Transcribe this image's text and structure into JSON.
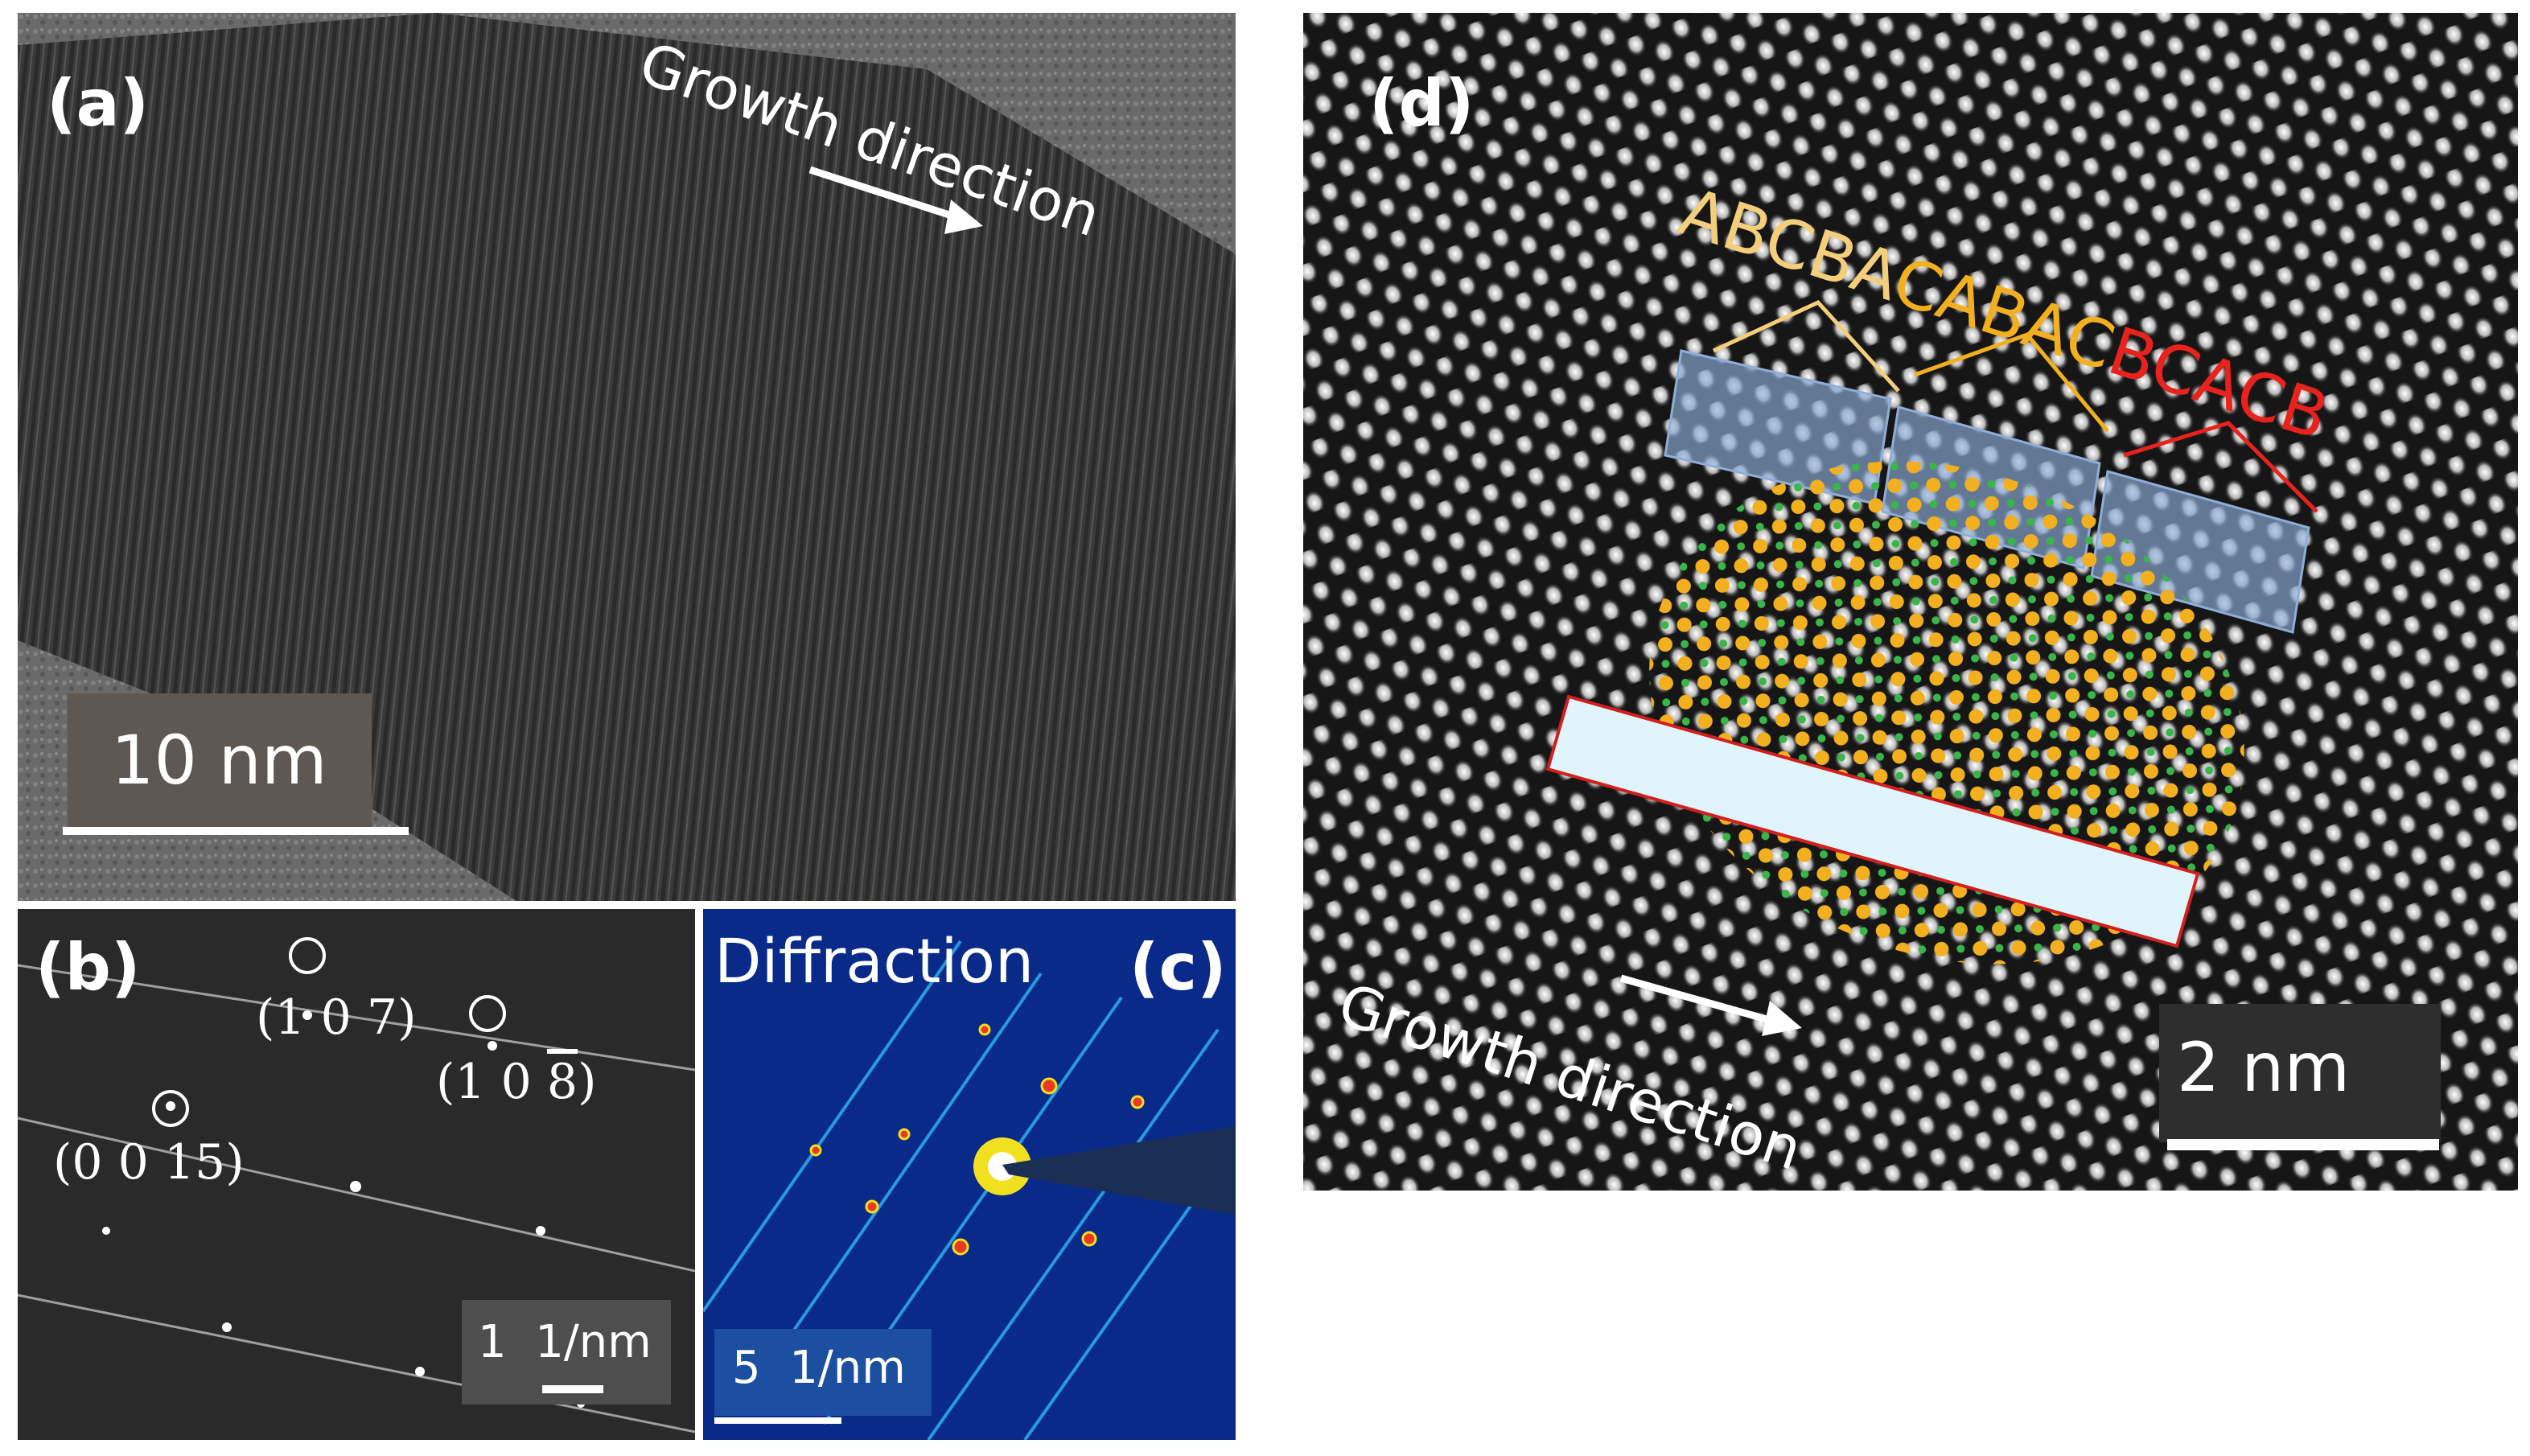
{
  "panels": {
    "a": {
      "label": "(a)",
      "annotation": "Growth direction",
      "scale_bar": "10 nm"
    },
    "b": {
      "label": "(b)",
      "spots": {
        "s107": "(1 0 7)",
        "s108_pre": "(1 0 ",
        "s108_bar": "8",
        "s108_post": ")",
        "s0015": "(0 0 15)"
      },
      "scale_bar": "1  1/nm"
    },
    "c": {
      "label": "(c)",
      "title": "Diffraction",
      "scale_bar": "5  1/nm"
    },
    "d": {
      "label": "(d)",
      "stacking": {
        "seg1": "ABCBA",
        "seg2": "CABAC",
        "seg3": "BCACB"
      },
      "annotation": "Growth direction",
      "scale_bar": "2 nm"
    }
  },
  "colors": {
    "seg1": "#f3cf7c",
    "seg2": "#f2b020",
    "seg3": "#e8221c",
    "atom_gold": "#f0a818",
    "atom_green": "#39b54a",
    "highlight_blue": "#8eaed8",
    "highlight_band": "#dff4fb",
    "band_border": "#d21f1f",
    "diffraction_bg": "#0a2a8a",
    "scale_box_c": "#1d4fa0"
  }
}
